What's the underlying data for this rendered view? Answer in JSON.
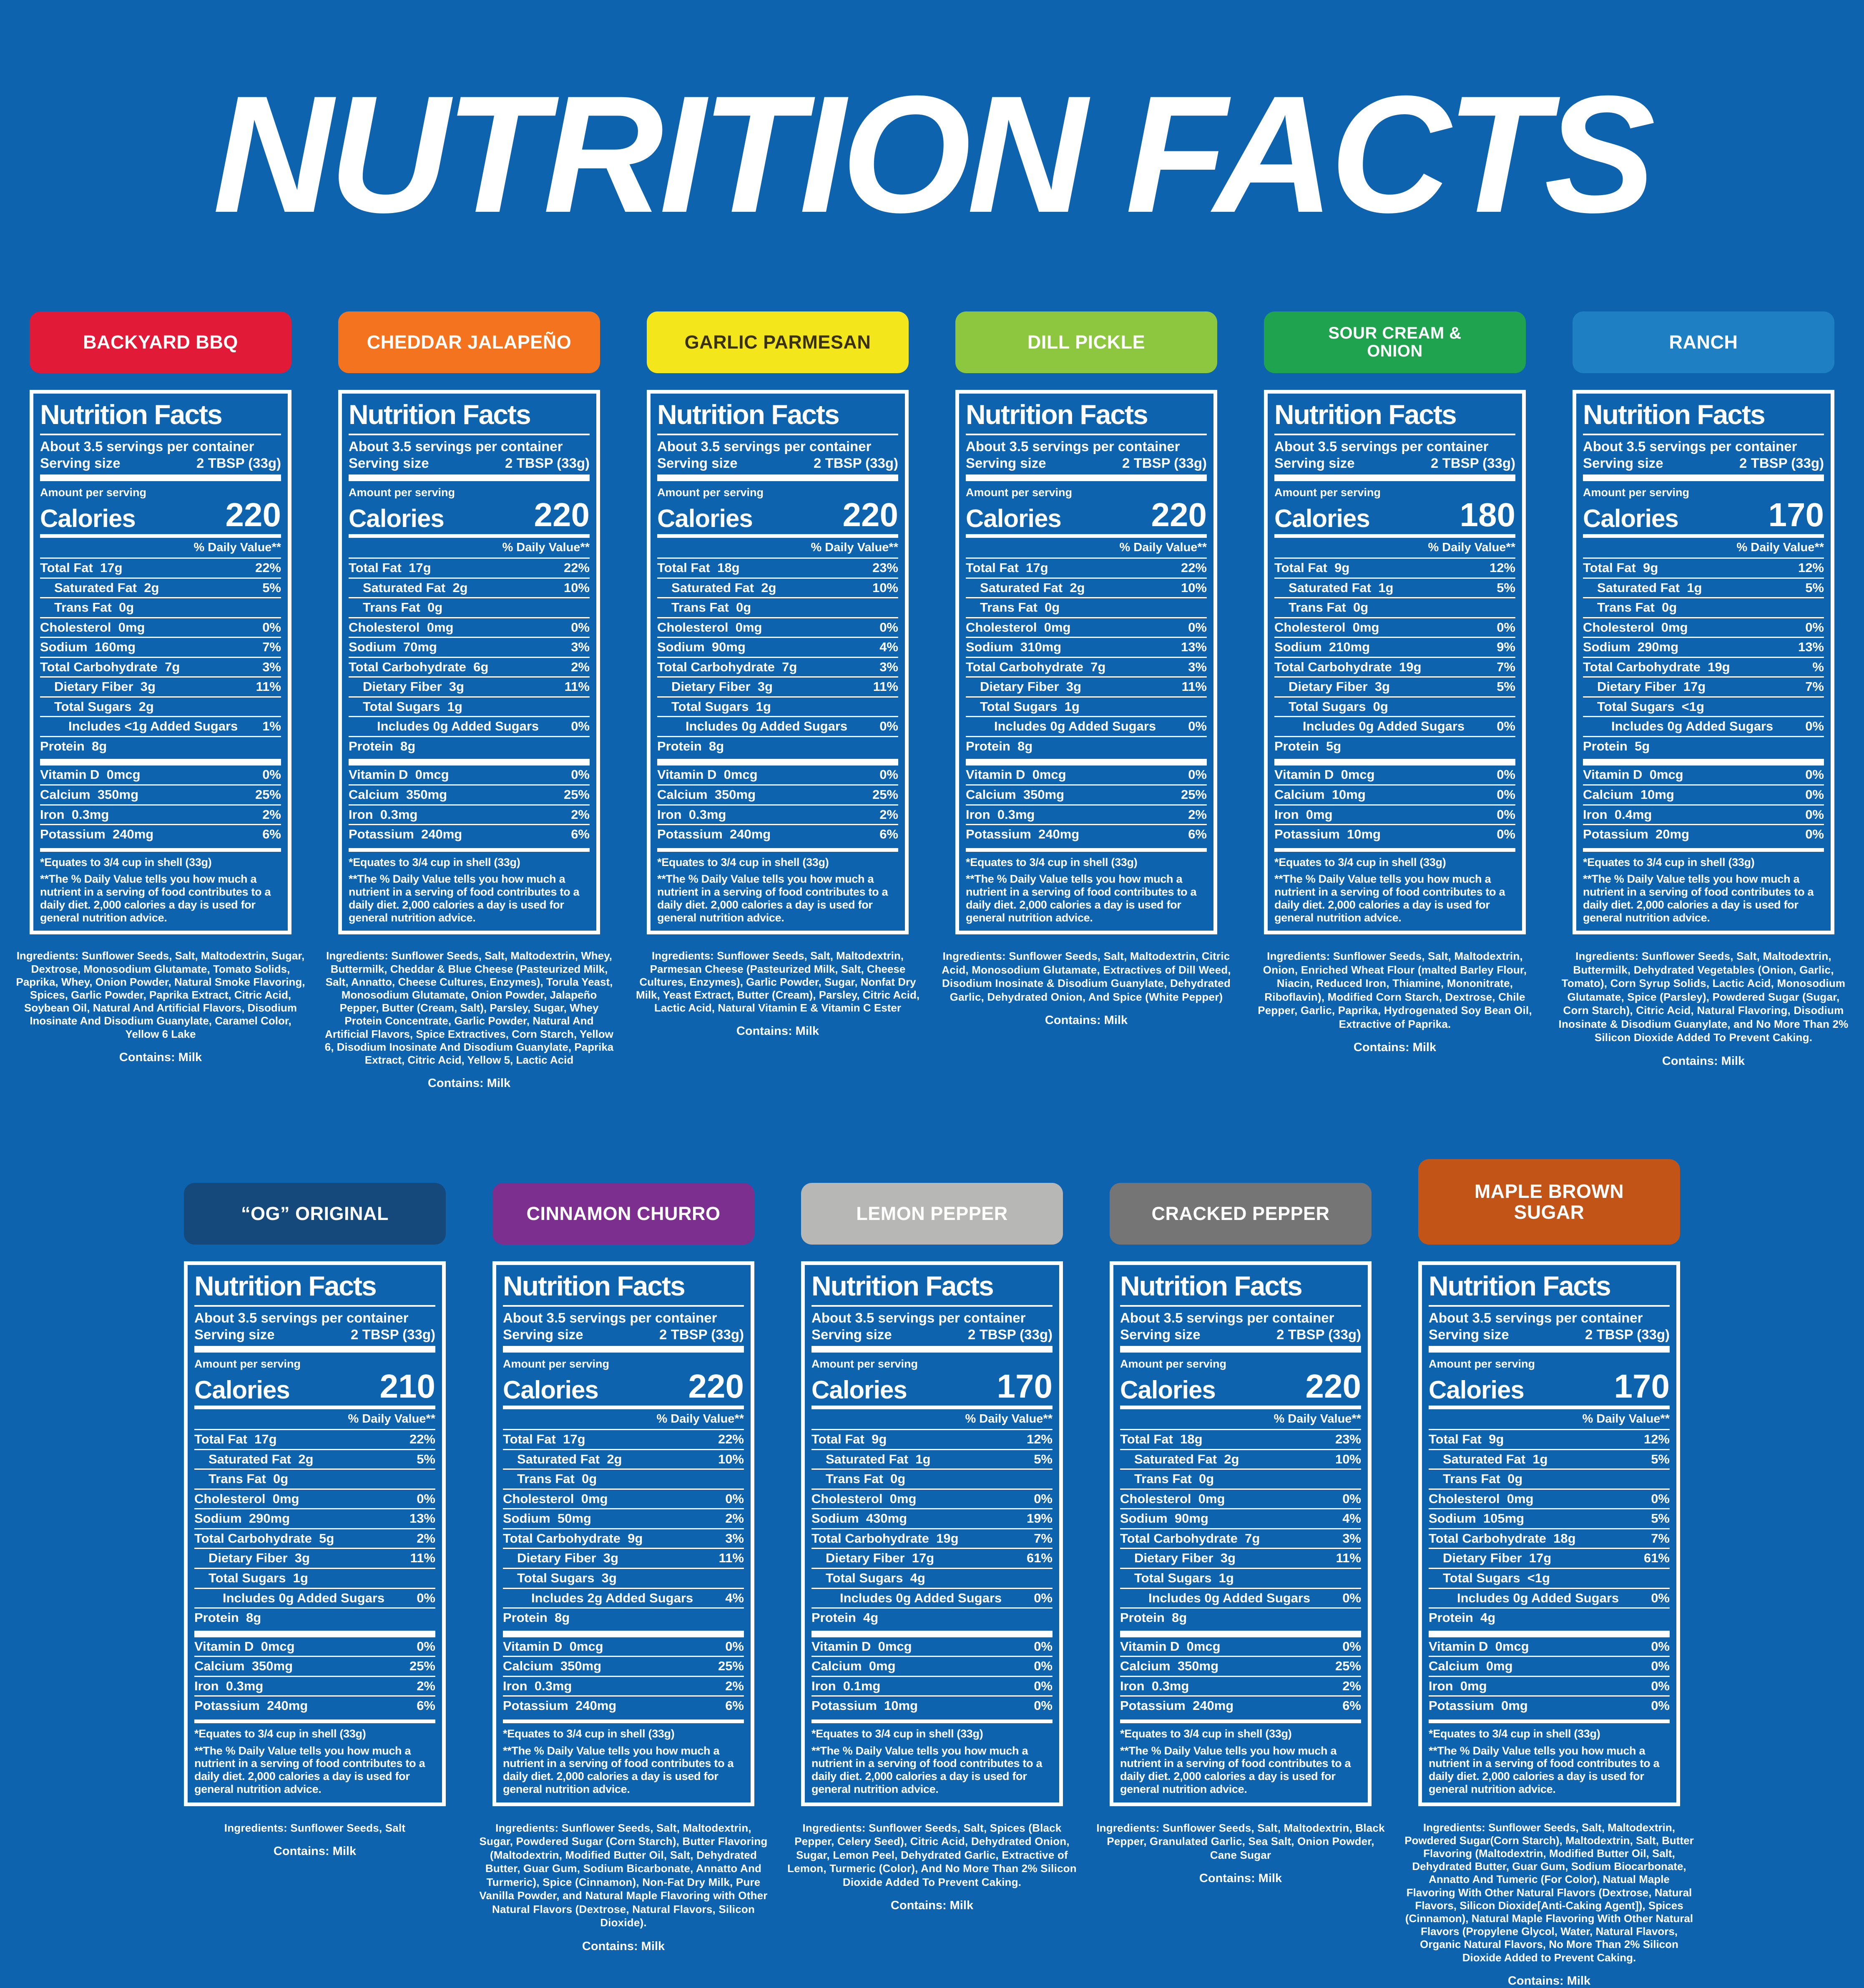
{
  "page": {
    "title": "NUTRITION FACTS",
    "background": "#0d63ae",
    "text_color": "#ffffff"
  },
  "shared": {
    "nf_heading": "Nutrition Facts",
    "servings_line": "About 3.5 servings per container",
    "serving_size_label": "Serving size",
    "serving_size_value": "2 TBSP (33g)",
    "amount_label": "Amount per serving",
    "calories_label": "Calories",
    "dv_header": "% Daily Value**",
    "includes_template": "Includes {amount} Added Sugars",
    "footnote1": "*Equates to 3/4 cup in shell (33g)",
    "footnote2": "**The % Daily Value tells you how much a nutrient in a serving of food contributes to a daily diet. 2,000 calories a day is used for general nutrition advice.",
    "ingredients_label": "Ingredients:",
    "nutrient_order": [
      {
        "key": "total_fat",
        "label": "Total Fat",
        "indent": 0
      },
      {
        "key": "saturated_fat",
        "label": "Saturated Fat",
        "indent": 1
      },
      {
        "key": "trans_fat",
        "label": "Trans Fat",
        "indent": 1
      },
      {
        "key": "cholesterol",
        "label": "Cholesterol",
        "indent": 0
      },
      {
        "key": "sodium",
        "label": "Sodium",
        "indent": 0
      },
      {
        "key": "total_carbohydrate",
        "label": "Total Carbohydrate",
        "indent": 0
      },
      {
        "key": "dietary_fiber",
        "label": "Dietary Fiber",
        "indent": 1
      },
      {
        "key": "total_sugars",
        "label": "Total Sugars",
        "indent": 1
      },
      {
        "key": "added_sugars",
        "label": "__includes__",
        "indent": 2
      },
      {
        "key": "protein",
        "label": "Protein",
        "indent": 0
      }
    ],
    "vitamin_order": [
      {
        "key": "vitamin_d",
        "label": "Vitamin D"
      },
      {
        "key": "calcium",
        "label": "Calcium"
      },
      {
        "key": "iron",
        "label": "Iron"
      },
      {
        "key": "potassium",
        "label": "Potassium"
      }
    ]
  },
  "rows": [
    [
      {
        "name": "BACKYARD BBQ",
        "badge_color": "#e11b37",
        "badge_text_color": "#ffffff",
        "calories": "220",
        "nutrients": {
          "total_fat": [
            "17g",
            "22%"
          ],
          "saturated_fat": [
            "2g",
            "5%"
          ],
          "trans_fat": [
            "0g",
            ""
          ],
          "cholesterol": [
            "0mg",
            "0%"
          ],
          "sodium": [
            "160mg",
            "7%"
          ],
          "total_carbohydrate": [
            "7g",
            "3%"
          ],
          "dietary_fiber": [
            "3g",
            "11%"
          ],
          "total_sugars": [
            "2g",
            ""
          ],
          "added_sugars": [
            "<1g",
            "1%"
          ],
          "protein": [
            "8g",
            ""
          ],
          "vitamin_d": [
            "0mcg",
            "0%"
          ],
          "calcium": [
            "350mg",
            "25%"
          ],
          "iron": [
            "0.3mg",
            "2%"
          ],
          "potassium": [
            "240mg",
            "6%"
          ]
        },
        "ingredients": "Sunflower Seeds, Salt, Maltodextrin, Sugar, Dextrose, Monosodium Glutamate, Tomato Solids, Paprika, Whey, Onion Powder, Natural Smoke Flavoring, Spices, Garlic Powder, Paprika Extract, Citric Acid, Soybean Oil, Natural And Artificial Flavors, Disodium Inosinate And Disodium Guanylate, Caramel Color, Yellow 6 Lake",
        "ingredients_style": "narrow",
        "contains": "Contains: Milk"
      },
      {
        "name": "CHEDDAR JALAPEÑO",
        "badge_color": "#f4731f",
        "badge_text_color": "#ffffff",
        "calories": "220",
        "nutrients": {
          "total_fat": [
            "17g",
            "22%"
          ],
          "saturated_fat": [
            "2g",
            "10%"
          ],
          "trans_fat": [
            "0g",
            ""
          ],
          "cholesterol": [
            "0mg",
            "0%"
          ],
          "sodium": [
            "70mg",
            "3%"
          ],
          "total_carbohydrate": [
            "6g",
            "2%"
          ],
          "dietary_fiber": [
            "3g",
            "11%"
          ],
          "total_sugars": [
            "1g",
            ""
          ],
          "added_sugars": [
            "0g",
            "0%"
          ],
          "protein": [
            "8g",
            ""
          ],
          "vitamin_d": [
            "0mcg",
            "0%"
          ],
          "calcium": [
            "350mg",
            "25%"
          ],
          "iron": [
            "0.3mg",
            "2%"
          ],
          "potassium": [
            "240mg",
            "6%"
          ]
        },
        "ingredients": "Sunflower Seeds, Salt, Maltodextrin, Whey, Buttermilk, Cheddar & Blue Cheese (Pasteurized Milk, Salt, Annatto, Cheese Cultures, Enzymes), Torula Yeast, Monosodium Glutamate, Onion Powder, Jalapeño Pepper, Butter (Cream, Salt), Parsley, Sugar, Whey Protein Concentrate, Garlic Powder, Natural And Artificial Flavors, Spice Extractives, Corn Starch, Yellow 6, Disodium Inosinate And Disodium Guanylate, Paprika Extract, Citric Acid, Yellow 5, Lactic Acid",
        "ingredients_style": "narrow",
        "contains": "Contains: Milk"
      },
      {
        "name": "GARLIC PARMESAN",
        "badge_color": "#f3e71c",
        "badge_text_color": "#3a3110",
        "calories": "220",
        "nutrients": {
          "total_fat": [
            "18g",
            "23%"
          ],
          "saturated_fat": [
            "2g",
            "10%"
          ],
          "trans_fat": [
            "0g",
            ""
          ],
          "cholesterol": [
            "0mg",
            "0%"
          ],
          "sodium": [
            "90mg",
            "4%"
          ],
          "total_carbohydrate": [
            "7g",
            "3%"
          ],
          "dietary_fiber": [
            "3g",
            "11%"
          ],
          "total_sugars": [
            "1g",
            ""
          ],
          "added_sugars": [
            "0g",
            "0%"
          ],
          "protein": [
            "8g",
            ""
          ],
          "vitamin_d": [
            "0mcg",
            "0%"
          ],
          "calcium": [
            "350mg",
            "25%"
          ],
          "iron": [
            "0.3mg",
            "2%"
          ],
          "potassium": [
            "240mg",
            "6%"
          ]
        },
        "ingredients": "Sunflower Seeds, Salt, Maltodextrin, Parmesan Cheese (Pasteurized Milk, Salt, Cheese Cultures, Enzymes), Garlic Powder, Sugar, Nonfat Dry Milk, Yeast Extract, Butter (Cream), Parsley, Citric Acid, Lactic Acid, Natural Vitamin E & Vitamin C Ester",
        "ingredients_style": "narrow",
        "contains": "Contains: Milk"
      },
      {
        "name": "DILL PICKLE",
        "badge_color": "#8dc63f",
        "badge_text_color": "#ffffff",
        "calories": "220",
        "nutrients": {
          "total_fat": [
            "17g",
            "22%"
          ],
          "saturated_fat": [
            "2g",
            "10%"
          ],
          "trans_fat": [
            "0g",
            ""
          ],
          "cholesterol": [
            "0mg",
            "0%"
          ],
          "sodium": [
            "310mg",
            "13%"
          ],
          "total_carbohydrate": [
            "7g",
            "3%"
          ],
          "dietary_fiber": [
            "3g",
            "11%"
          ],
          "total_sugars": [
            "1g",
            ""
          ],
          "added_sugars": [
            "0g",
            "0%"
          ],
          "protein": [
            "8g",
            ""
          ],
          "vitamin_d": [
            "0mcg",
            "0%"
          ],
          "calcium": [
            "350mg",
            "25%"
          ],
          "iron": [
            "0.3mg",
            "2%"
          ],
          "potassium": [
            "240mg",
            "6%"
          ]
        },
        "ingredients": "Sunflower Seeds, Salt, Maltodextrin, Citric Acid, Monosodium Glutamate, Extractives of Dill Weed, Disodium Inosinate & Disodium Guanylate, Dehydrated Garlic, Dehydrated Onion, And Spice (White Pepper)",
        "ingredients_style": "bold",
        "contains": "Contains: Milk"
      },
      {
        "name": "SOUR CREAM &\nONION",
        "badge_color": "#1fa34f",
        "badge_text_color": "#ffffff",
        "calories": "180",
        "nutrients": {
          "total_fat": [
            "9g",
            "12%"
          ],
          "saturated_fat": [
            "1g",
            "5%"
          ],
          "trans_fat": [
            "0g",
            ""
          ],
          "cholesterol": [
            "0mg",
            "0%"
          ],
          "sodium": [
            "210mg",
            "9%"
          ],
          "total_carbohydrate": [
            "19g",
            "7%"
          ],
          "dietary_fiber": [
            "3g",
            "5%"
          ],
          "total_sugars": [
            "0g",
            ""
          ],
          "added_sugars": [
            "0g",
            "0%"
          ],
          "protein": [
            "5g",
            ""
          ],
          "vitamin_d": [
            "0mcg",
            "0%"
          ],
          "calcium": [
            "10mg",
            "0%"
          ],
          "iron": [
            "0mg",
            "0%"
          ],
          "potassium": [
            "10mg",
            "0%"
          ]
        },
        "ingredients": "Sunflower Seeds, Salt, Maltodextrin, Onion, Enriched Wheat Flour (malted Barley Flour, Niacin, Reduced Iron, Thiamine, Mononitrate, Riboflavin), Modified Corn Starch, Dextrose, Chile Pepper, Garlic, Paprika, Hydrogenated Soy Bean Oil, Extractive of Paprika.",
        "ingredients_style": "bold",
        "contains": "Contains: Milk"
      },
      {
        "name": "RANCH",
        "badge_color": "#1e80c2",
        "badge_text_color": "#ffffff",
        "calories": "170",
        "nutrients": {
          "total_fat": [
            "9g",
            "12%"
          ],
          "saturated_fat": [
            "1g",
            "5%"
          ],
          "trans_fat": [
            "0g",
            ""
          ],
          "cholesterol": [
            "0mg",
            "0%"
          ],
          "sodium": [
            "290mg",
            "13%"
          ],
          "total_carbohydrate": [
            "19g",
            "%"
          ],
          "dietary_fiber": [
            "17g",
            "7%"
          ],
          "total_sugars": [
            "<1g",
            ""
          ],
          "added_sugars": [
            "0g",
            "0%"
          ],
          "protein": [
            "5g",
            ""
          ],
          "vitamin_d": [
            "0mcg",
            "0%"
          ],
          "calcium": [
            "10mg",
            "0%"
          ],
          "iron": [
            "0.4mg",
            "0%"
          ],
          "potassium": [
            "20mg",
            "0%"
          ]
        },
        "ingredients": "Sunflower Seeds, Salt, Maltodextrin, Buttermilk, Dehydrated Vegetables (Onion, Garlic, Tomato), Corn Syrup Solids, Lactic Acid, Monosodium Glutamate, Spice (Parsley), Powdered Sugar (Sugar, Corn Starch), Citric Acid, Natural Flavoring, Disodium Inosinate & Disodium Guanylate, and No More Than 2% Silicon Dioxide Added To Prevent Caking.",
        "ingredients_style": "bold",
        "contains": "Contains: Milk"
      }
    ],
    [
      {
        "name": "“OG” ORIGINAL",
        "badge_color": "#16497b",
        "badge_text_color": "#ffffff",
        "calories": "210",
        "nutrients": {
          "total_fat": [
            "17g",
            "22%"
          ],
          "saturated_fat": [
            "2g",
            "5%"
          ],
          "trans_fat": [
            "0g",
            ""
          ],
          "cholesterol": [
            "0mg",
            "0%"
          ],
          "sodium": [
            "290mg",
            "13%"
          ],
          "total_carbohydrate": [
            "5g",
            "2%"
          ],
          "dietary_fiber": [
            "3g",
            "11%"
          ],
          "total_sugars": [
            "1g",
            ""
          ],
          "added_sugars": [
            "0g",
            "0%"
          ],
          "protein": [
            "8g",
            ""
          ],
          "vitamin_d": [
            "0mcg",
            "0%"
          ],
          "calcium": [
            "350mg",
            "25%"
          ],
          "iron": [
            "0.3mg",
            "2%"
          ],
          "potassium": [
            "240mg",
            "6%"
          ]
        },
        "ingredients": "Sunflower Seeds, Salt",
        "ingredients_style": "bold",
        "contains": "Contains: Milk"
      },
      {
        "name": "CINNAMON CHURRO",
        "badge_color": "#7d2f8f",
        "badge_text_color": "#ffffff",
        "calories": "220",
        "nutrients": {
          "total_fat": [
            "17g",
            "22%"
          ],
          "saturated_fat": [
            "2g",
            "10%"
          ],
          "trans_fat": [
            "0g",
            ""
          ],
          "cholesterol": [
            "0mg",
            "0%"
          ],
          "sodium": [
            "50mg",
            "2%"
          ],
          "total_carbohydrate": [
            "9g",
            "3%"
          ],
          "dietary_fiber": [
            "3g",
            "11%"
          ],
          "total_sugars": [
            "3g",
            ""
          ],
          "added_sugars": [
            "2g",
            "4%"
          ],
          "protein": [
            "8g",
            ""
          ],
          "vitamin_d": [
            "0mcg",
            "0%"
          ],
          "calcium": [
            "350mg",
            "25%"
          ],
          "iron": [
            "0.3mg",
            "2%"
          ],
          "potassium": [
            "240mg",
            "6%"
          ]
        },
        "ingredients": "Sunflower Seeds, Salt, Maltodextrin, Sugar, Powdered Sugar (Corn Starch), Butter Flavoring (Maltodextrin, Modified Butter Oil, Salt, Dehydrated Butter, Guar Gum, Sodium Bicarbonate, Annatto And Turmeric), Spice (Cinnamon), Non-Fat Dry Milk, Pure Vanilla Powder, and Natural Maple Flavoring with Other Natural Flavors (Dextrose, Natural Flavors, Silicon Dioxide).",
        "ingredients_style": "bold",
        "contains": "Contains: Milk"
      },
      {
        "name": "LEMON PEPPER",
        "badge_color": "#b7b7b6",
        "badge_text_color": "#ffffff",
        "calories": "170",
        "nutrients": {
          "total_fat": [
            "9g",
            "12%"
          ],
          "saturated_fat": [
            "1g",
            "5%"
          ],
          "trans_fat": [
            "0g",
            ""
          ],
          "cholesterol": [
            "0mg",
            "0%"
          ],
          "sodium": [
            "430mg",
            "19%"
          ],
          "total_carbohydrate": [
            "19g",
            "7%"
          ],
          "dietary_fiber": [
            "17g",
            "61%"
          ],
          "total_sugars": [
            "4g",
            ""
          ],
          "added_sugars": [
            "0g",
            "0%"
          ],
          "protein": [
            "4g",
            ""
          ],
          "vitamin_d": [
            "0mcg",
            "0%"
          ],
          "calcium": [
            "0mg",
            "0%"
          ],
          "iron": [
            "0.1mg",
            "0%"
          ],
          "potassium": [
            "10mg",
            "0%"
          ]
        },
        "ingredients": "Sunflower Seeds, Salt, Spices (Black Pepper, Celery Seed), Citric Acid, Dehydrated Onion, Sugar, Lemon Peel, Dehydrated Garlic, Extractive of Lemon, Turmeric (Color), And No More Than 2% Silicon Dioxide Added To Prevent Caking.",
        "ingredients_style": "bold",
        "contains": "Contains: Milk"
      },
      {
        "name": "CRACKED PEPPER",
        "badge_color": "#757575",
        "badge_text_color": "#ffffff",
        "calories": "220",
        "nutrients": {
          "total_fat": [
            "18g",
            "23%"
          ],
          "saturated_fat": [
            "2g",
            "10%"
          ],
          "trans_fat": [
            "0g",
            ""
          ],
          "cholesterol": [
            "0mg",
            "0%"
          ],
          "sodium": [
            "90mg",
            "4%"
          ],
          "total_carbohydrate": [
            "7g",
            "3%"
          ],
          "dietary_fiber": [
            "3g",
            "11%"
          ],
          "total_sugars": [
            "1g",
            ""
          ],
          "added_sugars": [
            "0g",
            "0%"
          ],
          "protein": [
            "8g",
            ""
          ],
          "vitamin_d": [
            "0mcg",
            "0%"
          ],
          "calcium": [
            "350mg",
            "25%"
          ],
          "iron": [
            "0.3mg",
            "2%"
          ],
          "potassium": [
            "240mg",
            "6%"
          ]
        },
        "ingredients": "Sunflower Seeds, Salt, Maltodextrin, Black Pepper, Granulated Garlic, Sea Salt, Onion Powder, Cane Sugar",
        "ingredients_style": "bold",
        "contains": "Contains: Milk"
      },
      {
        "name": "MAPLE BROWN\nSUGAR",
        "badge_color": "#c25418",
        "badge_text_color": "#ffffff",
        "badge_tall": true,
        "calories": "170",
        "nutrients": {
          "total_fat": [
            "9g",
            "12%"
          ],
          "saturated_fat": [
            "1g",
            "5%"
          ],
          "trans_fat": [
            "0g",
            ""
          ],
          "cholesterol": [
            "0mg",
            "0%"
          ],
          "sodium": [
            "105mg",
            "5%"
          ],
          "total_carbohydrate": [
            "18g",
            "7%"
          ],
          "dietary_fiber": [
            "17g",
            "61%"
          ],
          "total_sugars": [
            "<1g",
            ""
          ],
          "added_sugars": [
            "0g",
            "0%"
          ],
          "protein": [
            "4g",
            ""
          ],
          "vitamin_d": [
            "0mcg",
            "0%"
          ],
          "calcium": [
            "0mg",
            "0%"
          ],
          "iron": [
            "0mg",
            "0%"
          ],
          "potassium": [
            "0mg",
            "0%"
          ]
        },
        "ingredients": "Sunflower Seeds, Salt, Maltodextrin, Powdered Sugar(Corn Starch), Maltodextrin, Salt, Butter Flavoring (Maltodextrin, Modified Butter Oil, Salt, Dehydrated Butter, Guar Gum, Sodium Biocarbonate, Annatto And Tumeric (For Color), Natual Maple Flavoring With Other Natural Flavors (Dextrose, Natural Flavors, Silicon Dioxide[Anti-Caking Agent]), Spices (Cinnamon), Natural Maple Flavoring With Other Natural Flavors (Propylene Glycol, Water, Natural Flavors, Organic Natural Flavors, No More Than 2% Silicon Dioxide Added to Prevent Caking.",
        "ingredients_style": "narrow",
        "contains": "Contains: Milk"
      }
    ]
  ]
}
